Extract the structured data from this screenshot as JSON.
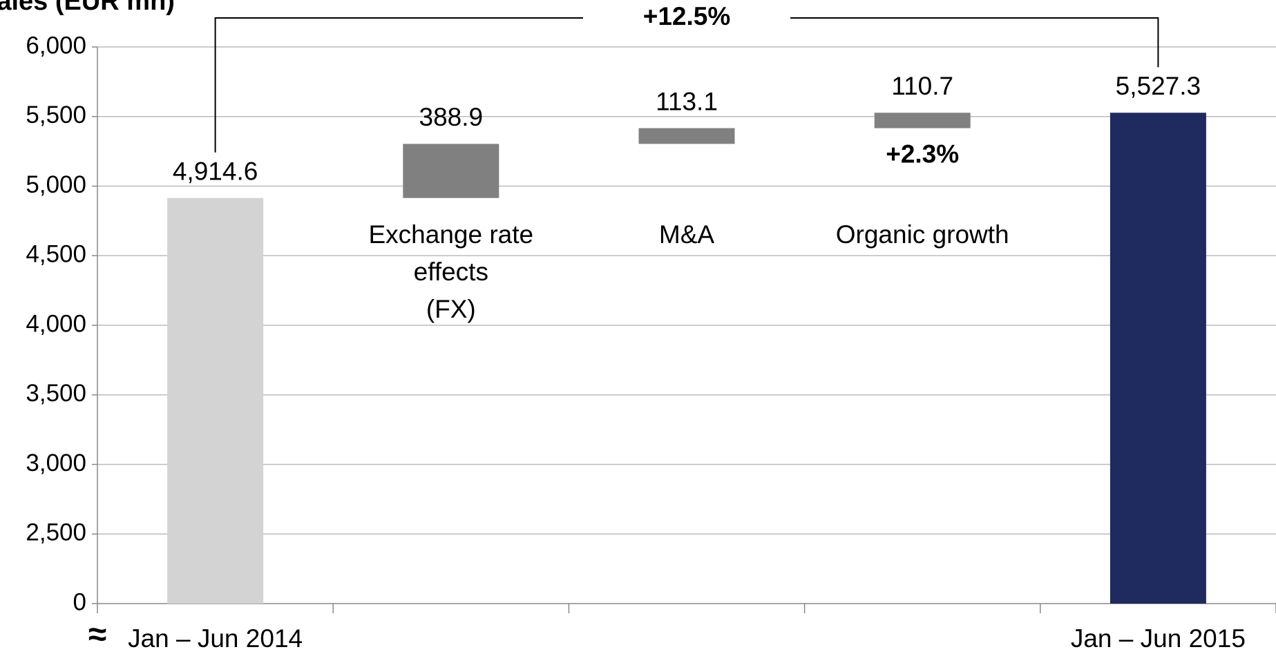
{
  "chart_data": {
    "type": "waterfall",
    "title": "Sales (EUR mn)",
    "categories": [
      "Jan – Jun 2014",
      "Exchange rate\neffects\n(FX)",
      "M&A",
      "Organic growth",
      "Jan – Jun 2015"
    ],
    "values": [
      4914.6,
      388.9,
      113.1,
      110.7,
      5527.3
    ],
    "value_labels": [
      "4,914.6",
      "388.9",
      "113.1",
      "110.7",
      "5,527.3"
    ],
    "measure": [
      "absolute",
      "relative",
      "relative",
      "relative",
      "total"
    ],
    "colors": [
      "#d3d3d3",
      "#808080",
      "#808080",
      "#808080",
      "#1f2a5e"
    ],
    "ylim": [
      0,
      6000
    ],
    "yticks": [
      0,
      {
        "value": 2500,
        "label": "2,500"
      },
      {
        "value": 3000,
        "label": "3,000"
      },
      {
        "value": 3500,
        "label": "3,500"
      },
      {
        "value": 4000,
        "label": "4,000"
      },
      {
        "value": 4500,
        "label": "4,500"
      },
      {
        "value": 5000,
        "label": "5,000"
      },
      {
        "value": 5500,
        "label": "5,500"
      },
      {
        "value": 6000,
        "label": "6,000"
      }
    ],
    "axis_break": [
      0,
      2000
    ],
    "axis_break_label": "≈",
    "grid": true,
    "annotations": [
      {
        "text": "+12.5%",
        "from": 0,
        "to": 4
      },
      {
        "text": "+2.3%",
        "category": 3
      }
    ]
  }
}
